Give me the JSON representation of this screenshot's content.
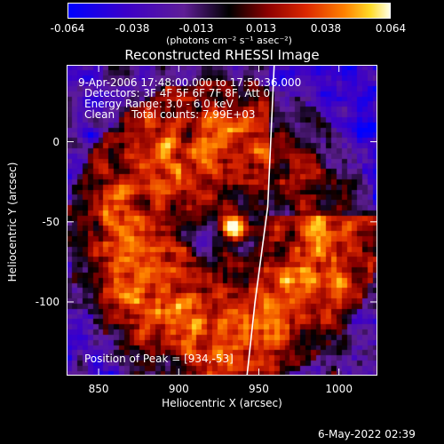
{
  "colorbar": {
    "tick_labels": [
      "-0.064",
      "-0.038",
      "-0.013",
      "0.013",
      "0.038",
      "0.064"
    ],
    "units_label": "(photons cm⁻² s⁻¹ asec⁻²)"
  },
  "plot": {
    "title": "Reconstructed RHESSI Image",
    "info_lines": [
      "9-Apr-2006 17:48:00.000 to 17:50:36.000",
      "Detectors: 3F 4F 5F 6F 7F 8F, Att 0",
      "Energy Range: 3.0 - 6.0 keV",
      "Clean     Total counts: 7.99E+03"
    ],
    "peak_label": "Position of Peak = [934,-53]"
  },
  "footer": {
    "timestamp": "6-May-2022 02:39"
  },
  "chart_data": {
    "type": "heatmap",
    "title": "Reconstructed RHESSI Image",
    "xlabel": "Heliocentric X (arcsec)",
    "ylabel": "Heliocentric Y (arcsec)",
    "xlim": [
      830,
      1024
    ],
    "ylim": [
      -146,
      48
    ],
    "x_ticks": [
      850,
      900,
      950,
      1000
    ],
    "y_ticks": [
      0,
      -50,
      -100
    ],
    "x_tick_labels": [
      "850",
      "900",
      "950",
      "1000"
    ],
    "y_tick_labels": [
      "0",
      "-50",
      "-100"
    ],
    "colorbar_range": [
      -0.064,
      0.064
    ],
    "colormap": "blue-purple-black-red-yellow-white",
    "peak": {
      "x": 934,
      "y": -53
    },
    "limb_line": [
      [
        959,
        48
      ],
      [
        955,
        -40
      ],
      [
        947,
        -100
      ],
      [
        942,
        -146
      ]
    ]
  }
}
